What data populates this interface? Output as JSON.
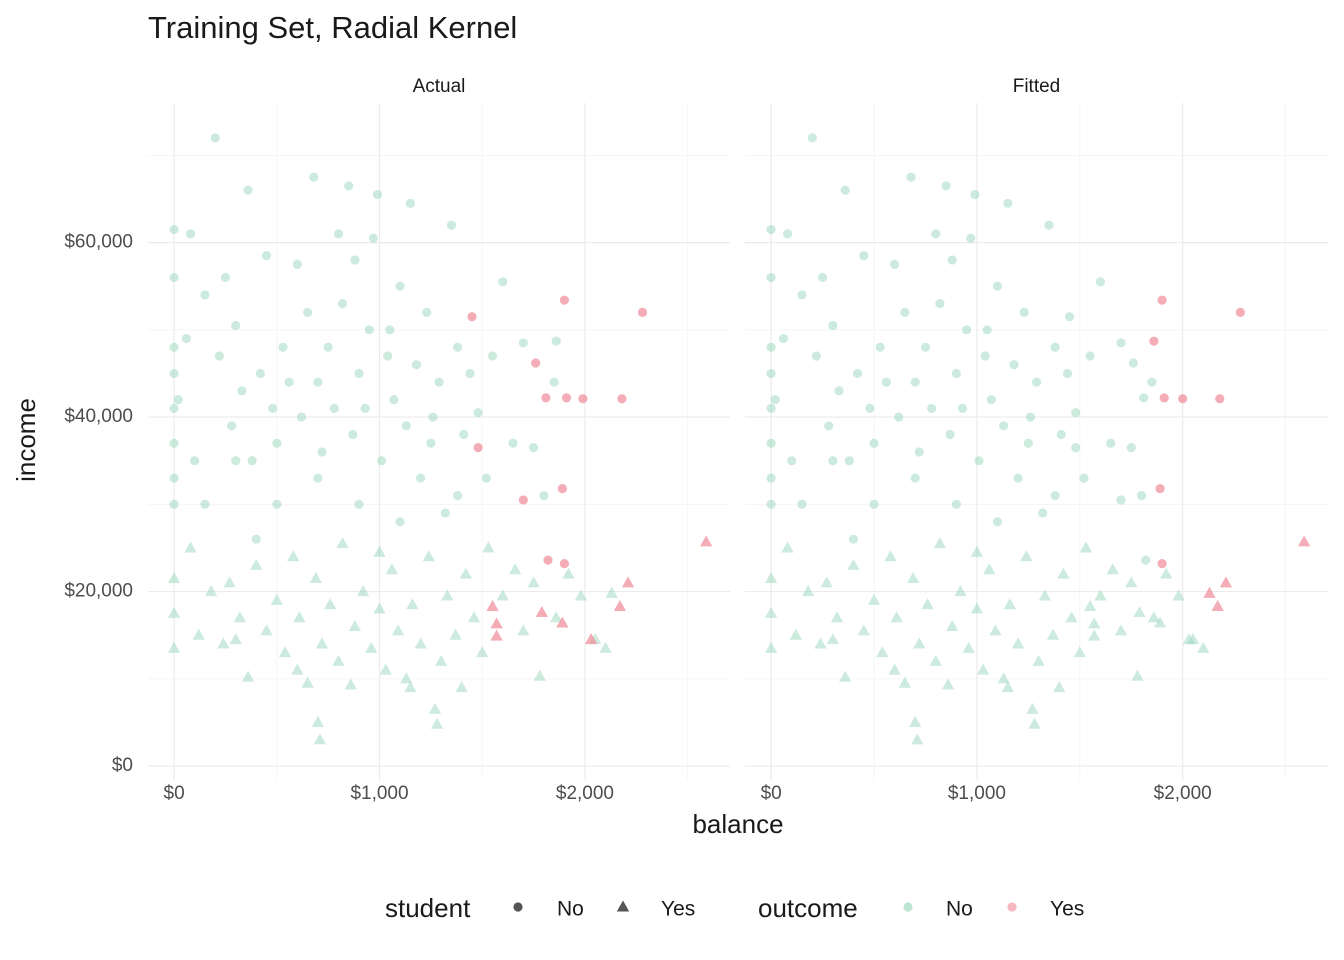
{
  "chart_data": {
    "type": "scatter",
    "title": "Training Set, Radial Kernel",
    "x_label": "balance",
    "y_label": "income",
    "xlim": [
      -127,
      2706
    ],
    "ylim": [
      -1600,
      76000
    ],
    "xticks": [
      {
        "value": 0,
        "label": "$0"
      },
      {
        "value": 1000,
        "label": "$1,000"
      },
      {
        "value": 2000,
        "label": "$2,000"
      }
    ],
    "yticks": [
      {
        "value": 0,
        "label": "$0"
      },
      {
        "value": 20000,
        "label": "$20,000"
      },
      {
        "value": 40000,
        "label": "$40,000"
      },
      {
        "value": 60000,
        "label": "$60,000"
      }
    ],
    "x_minor_grid": [
      500,
      1500,
      2500
    ],
    "y_minor_grid": [
      10000,
      30000,
      50000,
      70000
    ],
    "legends": [
      {
        "title": "student",
        "items": [
          {
            "label": "No",
            "shape": "circle"
          },
          {
            "label": "Yes",
            "shape": "triangle"
          }
        ]
      },
      {
        "title": "outcome",
        "items": [
          {
            "label": "No",
            "color": "#8fd3b6"
          },
          {
            "label": "Yes",
            "color": "#f08a98"
          }
        ]
      }
    ],
    "facets": [
      {
        "title": "Actual",
        "series": [
          {
            "shape": "circle",
            "color": "#8fd3b6",
            "x": [
              0,
              0,
              0,
              0,
              0,
              0,
              0,
              0,
              20,
              60,
              80,
              100,
              150,
              200,
              220,
              250,
              280,
              300,
              330,
              360,
              380,
              420,
              450,
              480,
              500,
              530,
              560,
              600,
              620,
              650,
              680,
              700,
              720,
              750,
              780,
              800,
              820,
              850,
              870,
              880,
              900,
              930,
              950,
              970,
              990,
              1010,
              1040,
              1070,
              1100,
              1130,
              1150,
              1180,
              1200,
              1230,
              1260,
              1290,
              1320,
              1350,
              1380,
              1410,
              1440,
              1480,
              1520,
              1550,
              1600,
              1650,
              1700,
              1750,
              1800,
              1850,
              1380,
              1100,
              900,
              700,
              500,
              300,
              150,
              400,
              1250,
              1050,
              1860
            ],
            "y": [
              61500,
              56000,
              48000,
              45000,
              41000,
              37000,
              33000,
              30000,
              42000,
              49000,
              61000,
              35000,
              54000,
              72000,
              47000,
              56000,
              39000,
              50500,
              43000,
              66000,
              35000,
              45000,
              58500,
              41000,
              37000,
              48000,
              44000,
              57500,
              40000,
              52000,
              67500,
              44000,
              36000,
              48000,
              41000,
              61000,
              53000,
              66500,
              38000,
              58000,
              45000,
              41000,
              50000,
              60500,
              65500,
              35000,
              47000,
              42000,
              55000,
              39000,
              64500,
              46000,
              33000,
              52000,
              40000,
              44000,
              29000,
              62000,
              48000,
              38000,
              45000,
              40500,
              33000,
              47000,
              55500,
              37000,
              48500,
              36500,
              31000,
              44000,
              31000,
              28000,
              30000,
              33000,
              30000,
              35000,
              30000,
              26000,
              37000,
              50000,
              48700
            ]
          },
          {
            "shape": "triangle",
            "color": "#8fd3b6",
            "x": [
              0,
              0,
              0,
              80,
              120,
              180,
              240,
              270,
              320,
              360,
              400,
              450,
              500,
              540,
              580,
              610,
              650,
              690,
              700,
              710,
              720,
              760,
              800,
              820,
              860,
              880,
              920,
              960,
              1000,
              1030,
              1060,
              1090,
              1130,
              1160,
              1200,
              1240,
              1270,
              1280,
              1300,
              1330,
              1370,
              1400,
              1420,
              1460,
              1500,
              1530,
              1600,
              1660,
              1700,
              1750,
              1780,
              1860,
              1920,
              1980,
              2050,
              2100,
              1000,
              600,
              300,
              1150,
              2130
            ],
            "y": [
              21500,
              17500,
              13500,
              25000,
              15000,
              20000,
              14000,
              21000,
              17000,
              10200,
              23000,
              15500,
              19000,
              13000,
              24000,
              17000,
              9500,
              21500,
              5000,
              3000,
              14000,
              18500,
              12000,
              25500,
              9300,
              16000,
              20000,
              13500,
              18000,
              11000,
              22500,
              15500,
              10000,
              18500,
              14000,
              24000,
              6500,
              4800,
              12000,
              19500,
              15000,
              9000,
              22000,
              17000,
              13000,
              25000,
              19500,
              22500,
              15500,
              21000,
              10300,
              17000,
              22000,
              19500,
              14500,
              13500,
              24500,
              11000,
              14500,
              9000,
              19800
            ]
          },
          {
            "shape": "circle",
            "color": "#f08a98",
            "x": [
              1450,
              1480,
              1760,
              1810,
              1910,
              1990,
              2180,
              1900,
              2280,
              1700,
              1890,
              1820,
              1900
            ],
            "y": [
              51500,
              36500,
              46200,
              42200,
              42200,
              42100,
              42100,
              53400,
              52000,
              30500,
              31800,
              23600,
              23200
            ]
          },
          {
            "shape": "triangle",
            "color": "#f08a98",
            "x": [
              2590,
              2210,
              2170,
              2030,
              1890,
              1790,
              1550,
              1570,
              1570
            ],
            "y": [
              25700,
              21000,
              18300,
              14500,
              16400,
              17600,
              18300,
              16300,
              14900
            ]
          }
        ]
      },
      {
        "title": "Fitted",
        "series": [
          {
            "shape": "circle",
            "color": "#8fd3b6",
            "x": [
              0,
              0,
              0,
              0,
              0,
              0,
              0,
              0,
              20,
              60,
              80,
              100,
              150,
              200,
              220,
              250,
              280,
              300,
              330,
              360,
              380,
              420,
              450,
              480,
              500,
              530,
              560,
              600,
              620,
              650,
              680,
              700,
              720,
              750,
              780,
              800,
              820,
              850,
              870,
              880,
              900,
              930,
              950,
              970,
              990,
              1010,
              1040,
              1070,
              1100,
              1130,
              1150,
              1180,
              1200,
              1230,
              1260,
              1290,
              1320,
              1350,
              1380,
              1410,
              1440,
              1480,
              1520,
              1550,
              1600,
              1650,
              1700,
              1750,
              1800,
              1850,
              1380,
              1100,
              900,
              700,
              500,
              300,
              150,
              400,
              1250,
              1050,
              1450,
              1480,
              1760,
              1810,
              1700,
              1820
            ],
            "y": [
              61500,
              56000,
              48000,
              45000,
              41000,
              37000,
              33000,
              30000,
              42000,
              49000,
              61000,
              35000,
              54000,
              72000,
              47000,
              56000,
              39000,
              50500,
              43000,
              66000,
              35000,
              45000,
              58500,
              41000,
              37000,
              48000,
              44000,
              57500,
              40000,
              52000,
              67500,
              44000,
              36000,
              48000,
              41000,
              61000,
              53000,
              66500,
              38000,
              58000,
              45000,
              41000,
              50000,
              60500,
              65500,
              35000,
              47000,
              42000,
              55000,
              39000,
              64500,
              46000,
              33000,
              52000,
              40000,
              44000,
              29000,
              62000,
              48000,
              38000,
              45000,
              40500,
              33000,
              47000,
              55500,
              37000,
              48500,
              36500,
              31000,
              44000,
              31000,
              28000,
              30000,
              33000,
              30000,
              35000,
              30000,
              26000,
              37000,
              50000,
              51500,
              36500,
              46200,
              42200,
              30500,
              23600
            ]
          },
          {
            "shape": "triangle",
            "color": "#8fd3b6",
            "x": [
              0,
              0,
              0,
              80,
              120,
              180,
              240,
              270,
              320,
              360,
              400,
              450,
              500,
              540,
              580,
              610,
              650,
              690,
              700,
              710,
              720,
              760,
              800,
              820,
              860,
              880,
              920,
              960,
              1000,
              1030,
              1060,
              1090,
              1130,
              1160,
              1200,
              1240,
              1270,
              1280,
              1300,
              1330,
              1370,
              1400,
              1420,
              1460,
              1500,
              1530,
              1600,
              1660,
              1700,
              1750,
              1780,
              1860,
              1920,
              1980,
              2050,
              2100,
              1000,
              600,
              300,
              1150,
              2030,
              1890,
              1790,
              1550,
              1570,
              1570
            ],
            "y": [
              21500,
              17500,
              13500,
              25000,
              15000,
              20000,
              14000,
              21000,
              17000,
              10200,
              23000,
              15500,
              19000,
              13000,
              24000,
              17000,
              9500,
              21500,
              5000,
              3000,
              14000,
              18500,
              12000,
              25500,
              9300,
              16000,
              20000,
              13500,
              18000,
              11000,
              22500,
              15500,
              10000,
              18500,
              14000,
              24000,
              6500,
              4800,
              12000,
              19500,
              15000,
              9000,
              22000,
              17000,
              13000,
              25000,
              19500,
              22500,
              15500,
              21000,
              10300,
              17000,
              22000,
              19500,
              14500,
              13500,
              24500,
              11000,
              14500,
              9000,
              14500,
              16400,
              17600,
              18300,
              16300,
              14900
            ]
          },
          {
            "shape": "circle",
            "color": "#f08a98",
            "x": [
              1900,
              2280,
              1860,
              1910,
              2000,
              2180,
              1890,
              1900
            ],
            "y": [
              53400,
              52000,
              48700,
              42200,
              42100,
              42100,
              31800,
              23200
            ]
          },
          {
            "shape": "triangle",
            "color": "#f08a98",
            "x": [
              2590,
              2210,
              2130,
              2170
            ],
            "y": [
              25700,
              21000,
              19800,
              18300
            ]
          }
        ]
      }
    ]
  }
}
